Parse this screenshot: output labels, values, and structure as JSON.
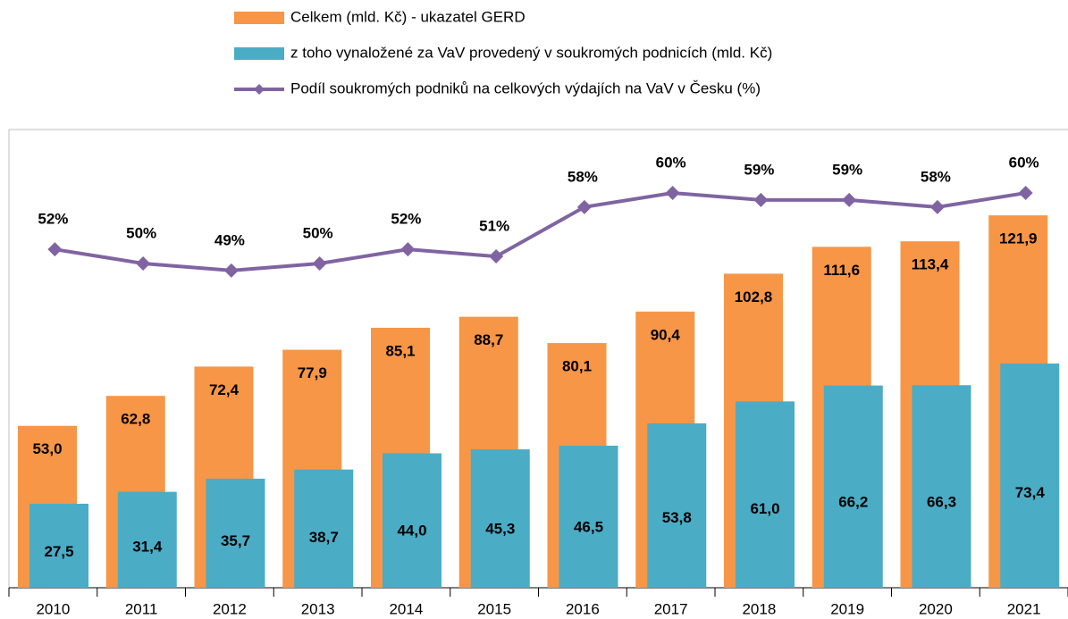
{
  "chart_data": {
    "type": "bar",
    "categories": [
      "2010",
      "2011",
      "2012",
      "2013",
      "2014",
      "2015",
      "2016",
      "2017",
      "2018",
      "2019",
      "2020",
      "2021"
    ],
    "series": [
      {
        "name": "Celkem (mld. Kč) - ukazatel GERD",
        "color": "#f79646",
        "values": [
          53.0,
          62.8,
          72.4,
          77.9,
          85.1,
          88.7,
          80.1,
          90.4,
          102.8,
          111.6,
          113.4,
          121.9
        ],
        "value_labels": [
          "53,0",
          "62,8",
          "72,4",
          "77,9",
          "85,1",
          "88,7",
          "80,1",
          "90,4",
          "102,8",
          "111,6",
          "113,4",
          "121,9"
        ]
      },
      {
        "name": "z toho vynaložené za VaV provedený v soukromých podnicích (mld. Kč)",
        "color": "#4bacc6",
        "values": [
          27.5,
          31.4,
          35.7,
          38.7,
          44.0,
          45.3,
          46.5,
          53.8,
          61.0,
          66.2,
          66.3,
          73.4
        ],
        "value_labels": [
          "27,5",
          "31,4",
          "35,7",
          "38,7",
          "44,0",
          "45,3",
          "46,5",
          "53,8",
          "61,0",
          "66,2",
          "66,3",
          "73,4"
        ]
      },
      {
        "name": "Podíl soukromých podniků na celkových výdajích na VaV v Česku (%)",
        "color": "#8064a2",
        "type": "line",
        "axis": "y2",
        "values": [
          52,
          50,
          49,
          50,
          52,
          51,
          58,
          60,
          59,
          59,
          58,
          60
        ],
        "value_labels": [
          "52%",
          "50%",
          "49%",
          "50%",
          "52%",
          "51%",
          "58%",
          "60%",
          "59%",
          "59%",
          "58%",
          "60%"
        ]
      }
    ],
    "ylim": [
      0,
      150
    ],
    "y2lim": [
      4,
      69
    ]
  }
}
